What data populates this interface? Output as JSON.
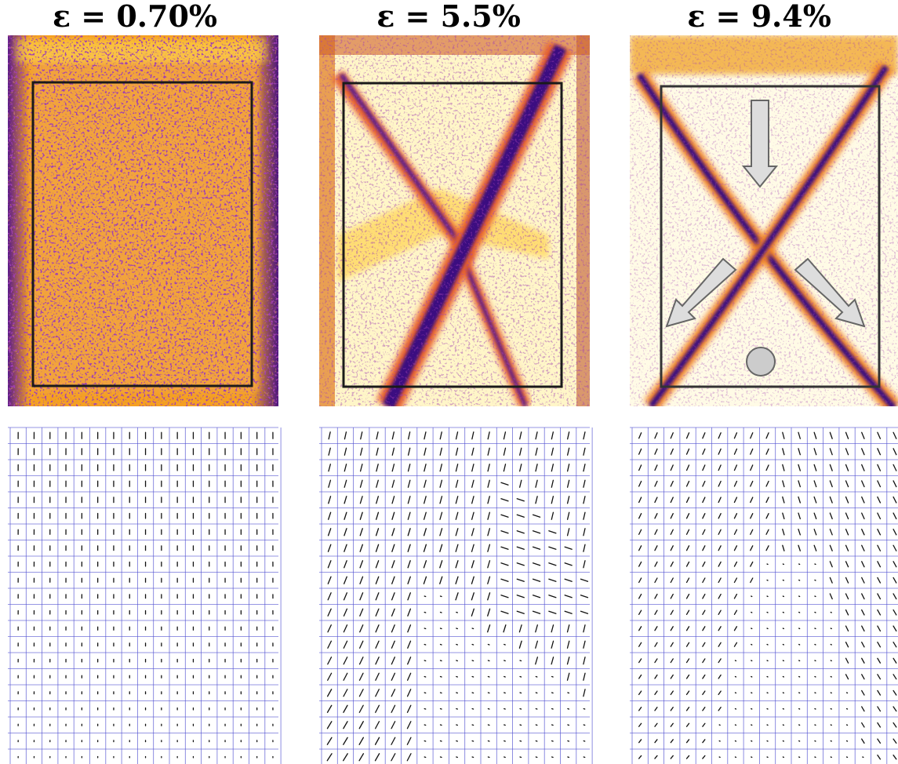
{
  "panels": [
    {
      "title": "ε = 0.70%"
    },
    {
      "title": "ε = 5.5%"
    },
    {
      "title": "ε = 9.4%"
    }
  ]
}
